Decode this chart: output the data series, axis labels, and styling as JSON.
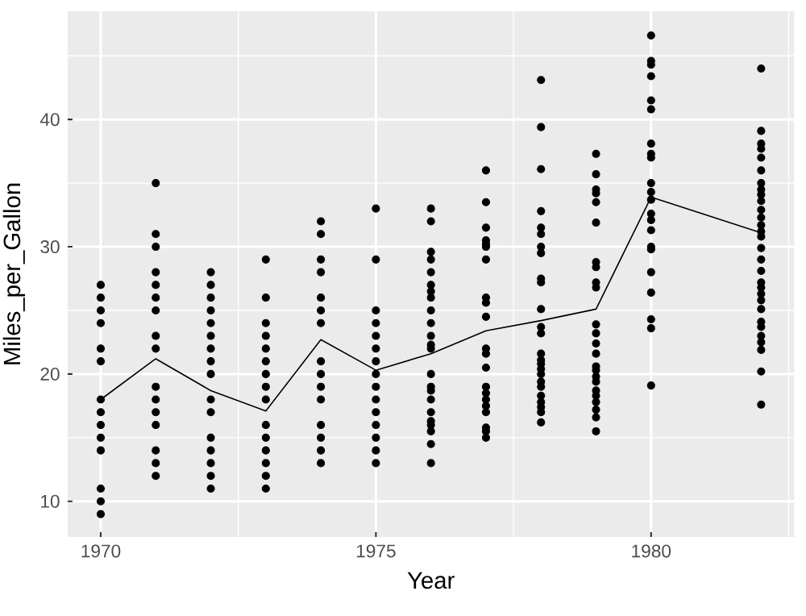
{
  "chart_data": {
    "type": "scatter",
    "xlabel": "Year",
    "ylabel": "Miles_per_Gallon",
    "xlim": [
      1969.4,
      1982.6
    ],
    "ylim": [
      7.2,
      48.5
    ],
    "xticks": [
      1970,
      1975,
      1980
    ],
    "yticks": [
      10,
      20,
      30,
      40
    ],
    "grid": true,
    "legend": false,
    "marker": "circle",
    "series": [
      {
        "color": "#000000",
        "x": [
          1970,
          1970,
          1970,
          1970,
          1970,
          1970,
          1970,
          1970,
          1970,
          1970,
          1970,
          1970,
          1970,
          1970
        ],
        "values": [
          27,
          26,
          25,
          24,
          22,
          21,
          18,
          17,
          16,
          15,
          14,
          11,
          10,
          9
        ]
      },
      {
        "color": "#000000",
        "x": [
          1971,
          1971,
          1971,
          1971,
          1971,
          1971,
          1971,
          1971,
          1971,
          1971,
          1971,
          1971,
          1971,
          1971,
          1971,
          1971
        ],
        "values": [
          35,
          31,
          30,
          28,
          27,
          26,
          25,
          23,
          22,
          19,
          18,
          17,
          16,
          14,
          13,
          12
        ]
      },
      {
        "color": "#000000",
        "x": [
          1972,
          1972,
          1972,
          1972,
          1972,
          1972,
          1972,
          1972,
          1972,
          1972,
          1972,
          1972,
          1972,
          1972,
          1972,
          1972
        ],
        "values": [
          28,
          27,
          26,
          25,
          24,
          23,
          22,
          21,
          20,
          18,
          17,
          15,
          14,
          13,
          12,
          11
        ]
      },
      {
        "color": "#000000",
        "x": [
          1973,
          1973,
          1973,
          1973,
          1973,
          1973,
          1973,
          1973,
          1973,
          1973,
          1973,
          1973,
          1973,
          1973,
          1973
        ],
        "values": [
          29,
          26,
          24,
          23,
          22,
          21,
          20,
          19,
          18,
          16,
          15,
          14,
          13,
          12,
          11
        ]
      },
      {
        "color": "#000000",
        "x": [
          1974,
          1974,
          1974,
          1974,
          1974,
          1974,
          1974,
          1974,
          1974,
          1974,
          1974,
          1974,
          1974,
          1974,
          1974
        ],
        "values": [
          32,
          31,
          29,
          28,
          26,
          25,
          24,
          21,
          20,
          19,
          18,
          16,
          15,
          14,
          13
        ]
      },
      {
        "color": "#000000",
        "x": [
          1975,
          1975,
          1975,
          1975,
          1975,
          1975,
          1975,
          1975,
          1975,
          1975,
          1975,
          1975,
          1975,
          1975,
          1975
        ],
        "values": [
          33,
          29,
          25,
          24,
          23,
          22,
          21,
          20,
          19,
          18,
          17,
          16,
          15,
          14,
          13
        ]
      },
      {
        "color": "#000000",
        "x": [
          1976,
          1976,
          1976,
          1976,
          1976,
          1976,
          1976,
          1976,
          1976,
          1976,
          1976,
          1976,
          1976,
          1976,
          1976,
          1976,
          1976,
          1976,
          1976,
          1976,
          1976,
          1976,
          1976
        ],
        "values": [
          33,
          32,
          29.6,
          29,
          28,
          27,
          26.5,
          26,
          25,
          24,
          23,
          22.3,
          22,
          20,
          19,
          18.7,
          18,
          17,
          16.3,
          16,
          15.5,
          14.5,
          13
        ]
      },
      {
        "color": "#000000",
        "x": [
          1977,
          1977,
          1977,
          1977,
          1977,
          1977,
          1977,
          1977,
          1977,
          1977,
          1977,
          1977,
          1977,
          1977,
          1977,
          1977,
          1977,
          1977,
          1977,
          1977,
          1977
        ],
        "values": [
          36,
          33.5,
          31.5,
          30.5,
          30.2,
          30,
          29,
          26,
          25.6,
          24.5,
          22,
          21.6,
          20.5,
          19,
          18.5,
          18,
          17.5,
          17,
          15.8,
          15.5,
          15
        ]
      },
      {
        "color": "#000000",
        "x": [
          1978,
          1978,
          1978,
          1978,
          1978,
          1978,
          1978,
          1978,
          1978,
          1978,
          1978,
          1978,
          1978,
          1978,
          1978,
          1978,
          1978,
          1978,
          1978,
          1978,
          1978,
          1978,
          1978,
          1978,
          1978
        ],
        "values": [
          43.1,
          39.4,
          36.1,
          32.8,
          31.5,
          31,
          30,
          29.5,
          27.5,
          27.2,
          25.1,
          23.7,
          23.2,
          21.6,
          21.1,
          20.8,
          20.4,
          20,
          19.4,
          19,
          18.3,
          17.8,
          17.4,
          17,
          16.2
        ]
      },
      {
        "color": "#000000",
        "x": [
          1979,
          1979,
          1979,
          1979,
          1979,
          1979,
          1979,
          1979,
          1979,
          1979,
          1979,
          1979,
          1979,
          1979,
          1979,
          1979,
          1979,
          1979,
          1979,
          1979,
          1979,
          1979,
          1979,
          1979
        ],
        "values": [
          37.3,
          35.7,
          34.5,
          34.2,
          33.5,
          31.9,
          28.8,
          28.4,
          27.2,
          26.8,
          23.9,
          23.2,
          22.4,
          21.6,
          20.6,
          20.3,
          19.8,
          19.4,
          18.7,
          18.3,
          17.8,
          17.2,
          16.6,
          15.5
        ]
      },
      {
        "color": "#000000",
        "x": [
          1980,
          1980,
          1980,
          1980,
          1980,
          1980,
          1980,
          1980,
          1980,
          1980,
          1980,
          1980,
          1980,
          1980,
          1980,
          1980,
          1980,
          1980,
          1980,
          1980,
          1980,
          1980
        ],
        "values": [
          46.6,
          44.6,
          44.3,
          43.4,
          41.5,
          40.8,
          38.1,
          37.3,
          37,
          35,
          34.3,
          33.7,
          32.6,
          32.1,
          31.3,
          30,
          29.8,
          28,
          26.4,
          24.3,
          23.6,
          19.1
        ]
      },
      {
        "color": "#000000",
        "x": [
          1982,
          1982,
          1982,
          1982,
          1982,
          1982,
          1982,
          1982,
          1982,
          1982,
          1982,
          1982,
          1982,
          1982,
          1982,
          1982,
          1982,
          1982,
          1982,
          1982,
          1982,
          1982,
          1982,
          1982,
          1982,
          1982,
          1982,
          1982,
          1982,
          1982
        ],
        "values": [
          44,
          39.1,
          38.1,
          37.7,
          37,
          36,
          35,
          34.5,
          34.1,
          33.6,
          32.9,
          32.3,
          31.7,
          31.2,
          30.8,
          29.9,
          29,
          28.1,
          27.2,
          26.8,
          26.3,
          25.8,
          25.1,
          24.1,
          23.7,
          23,
          22.5,
          21.9,
          20.2,
          17.6
        ]
      },
      {
        "type": "line",
        "marker": "none",
        "color": "#000000",
        "x": [
          1970,
          1971,
          1972,
          1973,
          1974,
          1975,
          1976,
          1977,
          1978,
          1979,
          1980,
          1982
        ],
        "values": [
          18,
          21.2,
          18.7,
          17.1,
          22.7,
          20.3,
          21.6,
          23.4,
          24.2,
          25.1,
          33.9,
          31.1
        ]
      }
    ]
  }
}
